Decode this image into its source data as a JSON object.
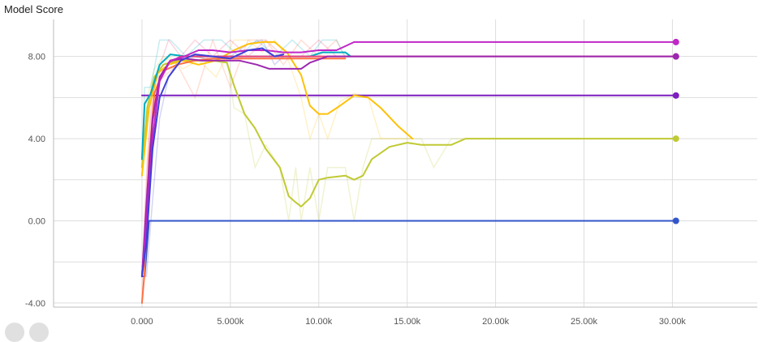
{
  "card": {
    "title": "Model Score",
    "controls": [
      "expand-icon",
      "data-download-icon"
    ]
  },
  "chart_data": {
    "type": "line",
    "title": "Model Score",
    "xlabel": "",
    "ylabel": "",
    "xlim": [
      -5000,
      34800
    ],
    "ylim": [
      -4.2,
      9.8
    ],
    "xticks": [
      "0.000",
      "5.000k",
      "10.00k",
      "15.00k",
      "20.00k",
      "25.00k",
      "30.00k"
    ],
    "xtick_values": [
      0,
      5000,
      10000,
      15000,
      20000,
      25000,
      30000
    ],
    "yticks": [
      "-4.00",
      "0.00",
      "4.00",
      "8.00"
    ],
    "ytick_values": [
      -4,
      0,
      4,
      8
    ],
    "grid": true,
    "legend": "none",
    "series": [
      {
        "color": "#3355cc",
        "x": [
          0,
          150,
          400,
          30200
        ],
        "y": [
          -2.7,
          -2.7,
          0,
          0
        ]
      },
      {
        "color": "#7b1fc0",
        "x": [
          0,
          30200
        ],
        "y": [
          6.1,
          6.1
        ]
      },
      {
        "color": "#c0ca33",
        "x": [
          0,
          300,
          700,
          1200,
          2000,
          3000,
          4000,
          4800,
          5200,
          5800,
          6400,
          7000,
          7800,
          8300,
          8700,
          9000,
          9500,
          10000,
          10500,
          11500,
          12000,
          12500,
          13000,
          14000,
          15000,
          15800,
          16500,
          17500,
          18300,
          30200
        ],
        "y": [
          2.6,
          5.5,
          7.0,
          7.6,
          7.8,
          7.8,
          7.8,
          7.7,
          6.6,
          5.2,
          4.5,
          3.5,
          2.6,
          1.2,
          0.9,
          0.7,
          1.1,
          2.0,
          2.1,
          2.2,
          2.0,
          2.2,
          3.0,
          3.6,
          3.8,
          3.7,
          3.7,
          3.7,
          4.0,
          4.0
        ],
        "raw_y": [
          2.6,
          6.0,
          7.4,
          8.0,
          7.6,
          8.0,
          7.8,
          8.0,
          5.5,
          5.2,
          2.6,
          3.7,
          2.6,
          0.0,
          2.6,
          0.0,
          2.6,
          0.0,
          2.6,
          2.6,
          0.0,
          2.6,
          4.0,
          4.0,
          4.0,
          4.0,
          2.6,
          4.0,
          4.0,
          4.0
        ]
      },
      {
        "color": "#ffc107",
        "x": [
          0,
          400,
          900,
          1500,
          2300,
          3200,
          4200,
          5200,
          6000,
          6800,
          7500,
          8200,
          9000,
          9500,
          10000,
          10500,
          11200,
          12000,
          12800,
          13500,
          14500,
          15300
        ],
        "y": [
          2.2,
          5.5,
          7.2,
          7.6,
          7.8,
          7.6,
          7.8,
          8.3,
          8.6,
          8.7,
          8.7,
          8.2,
          7.1,
          5.6,
          5.2,
          5.2,
          5.6,
          6.1,
          6.0,
          5.5,
          4.6,
          4.0
        ],
        "raw_y": [
          2.2,
          6.0,
          7.0,
          8.0,
          7.4,
          7.8,
          7.0,
          8.8,
          8.8,
          8.2,
          8.8,
          8.0,
          6.0,
          4.0,
          5.2,
          4.0,
          5.8,
          6.2,
          6.0,
          4.0,
          4.0,
          4.0
        ]
      },
      {
        "color": "#00acc1",
        "x": [
          0,
          150,
          500,
          1000,
          1600,
          2500,
          3500,
          4500,
          5500,
          6500,
          7500,
          8500,
          9500,
          10200,
          11000,
          11500,
          11800
        ],
        "y": [
          3.0,
          5.7,
          6.2,
          7.6,
          8.1,
          8.0,
          8.0,
          8.0,
          8.0,
          8.0,
          8.0,
          8.0,
          8.0,
          8.2,
          8.2,
          8.2,
          8.0
        ],
        "raw_y": [
          3.0,
          6.5,
          6.5,
          8.8,
          8.8,
          8.0,
          8.8,
          8.8,
          8.0,
          8.8,
          8.0,
          8.8,
          8.0,
          8.8,
          8.8,
          8.0,
          8.0
        ]
      },
      {
        "color": "#ff7043",
        "x": [
          0,
          150,
          400,
          700,
          1200,
          2000,
          3000,
          4000,
          5000,
          6000,
          7000,
          8000,
          9000,
          10000,
          11000,
          11500
        ],
        "y": [
          -4.0,
          -2.5,
          3.0,
          6.2,
          7.3,
          7.6,
          7.8,
          7.9,
          7.9,
          7.9,
          7.9,
          7.9,
          7.9,
          7.9,
          7.9,
          7.9
        ],
        "raw_y": [
          -4.0,
          0.0,
          4.0,
          6.5,
          7.0,
          7.6,
          6.0,
          8.8,
          6.5,
          8.8,
          8.8,
          7.6,
          8.8,
          8.0,
          8.8,
          7.9
        ]
      },
      {
        "color": "#ec407a",
        "x": [
          0,
          300,
          600,
          1000,
          1500,
          2200,
          3000,
          4000,
          5000,
          6000,
          7000,
          8000,
          9000,
          10000,
          11000,
          12000,
          30200
        ],
        "y": [
          -2.7,
          1.0,
          4.8,
          6.8,
          7.7,
          8.0,
          8.0,
          8.0,
          8.0,
          8.0,
          8.0,
          8.0,
          8.0,
          8.0,
          8.0,
          8.0,
          8.0
        ],
        "raw_y": [
          -2.7,
          3.0,
          6.5,
          7.5,
          8.8,
          8.0,
          8.8,
          8.0,
          8.8,
          8.0,
          8.8,
          8.0,
          8.0,
          8.8,
          8.0,
          8.0,
          8.0
        ]
      },
      {
        "color": "#9c27b0",
        "x": [
          0,
          300,
          600,
          1000,
          1600,
          2400,
          3400,
          4500,
          5500,
          6500,
          7200,
          8000,
          9000,
          9500,
          10500,
          11500,
          30200
        ],
        "y": [
          -2.7,
          1.5,
          5.0,
          7.0,
          7.8,
          7.9,
          7.8,
          7.8,
          7.8,
          7.6,
          7.4,
          7.4,
          7.4,
          7.7,
          8.0,
          8.0,
          8.0
        ]
      },
      {
        "color": "#c026c8",
        "x": [
          0,
          300,
          600,
          1000,
          1600,
          2400,
          3200,
          4000,
          5000,
          6000,
          7000,
          8000,
          9000,
          10000,
          11000,
          11500,
          12000,
          30200
        ],
        "y": [
          -2.7,
          0.5,
          4.0,
          6.8,
          7.8,
          8.0,
          8.3,
          8.3,
          8.2,
          8.3,
          8.3,
          8.2,
          8.2,
          8.3,
          8.3,
          8.5,
          8.7,
          8.7
        ]
      },
      {
        "color": "#3f3fd6",
        "x": [
          0,
          250,
          600,
          1000,
          1500,
          2200,
          3000,
          4000,
          5000,
          6000,
          6800,
          7500,
          8000
        ],
        "y": [
          -2.7,
          -1.0,
          3.5,
          6.0,
          7.0,
          7.8,
          8.1,
          8.0,
          7.9,
          8.3,
          8.4,
          8.0,
          8.1
        ],
        "raw_y": [
          -2.7,
          -2.7,
          1.0,
          5.0,
          7.0,
          8.0,
          8.0,
          7.8,
          8.0,
          8.6,
          8.8,
          7.6,
          8.0
        ]
      }
    ]
  }
}
